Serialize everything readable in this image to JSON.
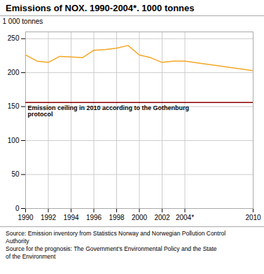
{
  "chart_data": {
    "type": "line",
    "title": "Emissions of NOX. 1990-2004*. 1000 tonnes",
    "ylabel": "1 000 tonnes",
    "x": [
      1990,
      1991,
      1992,
      1993,
      1994,
      1995,
      1996,
      1997,
      1998,
      1999,
      2000,
      2001,
      2002,
      2003,
      2004,
      2010
    ],
    "values": [
      226,
      217,
      215,
      224,
      223,
      222,
      233,
      234,
      236,
      240,
      226,
      222,
      215,
      217,
      217,
      203
    ],
    "color": "#f5a623",
    "xlim": [
      1990,
      2010
    ],
    "ylim": [
      0,
      260
    ],
    "xticks": [
      1990,
      1992,
      1994,
      1996,
      1998,
      2000,
      2002,
      {
        "value": 2004,
        "label": "2004*"
      },
      2010
    ],
    "yticks": [
      0,
      50,
      100,
      150,
      200,
      250
    ],
    "grid": true,
    "hlines": [
      {
        "y": 156,
        "color": "#8b0000",
        "label": "Emission ceiling in 2010 according to the Gothenburg\nprotocol"
      }
    ],
    "source": "Source: Emission inventory from Statistics Norway and Norwegian Pollution Control\nAuthority\nSource for the prognosis: The Government's Environmental Policy and the State\nof the Environment"
  }
}
